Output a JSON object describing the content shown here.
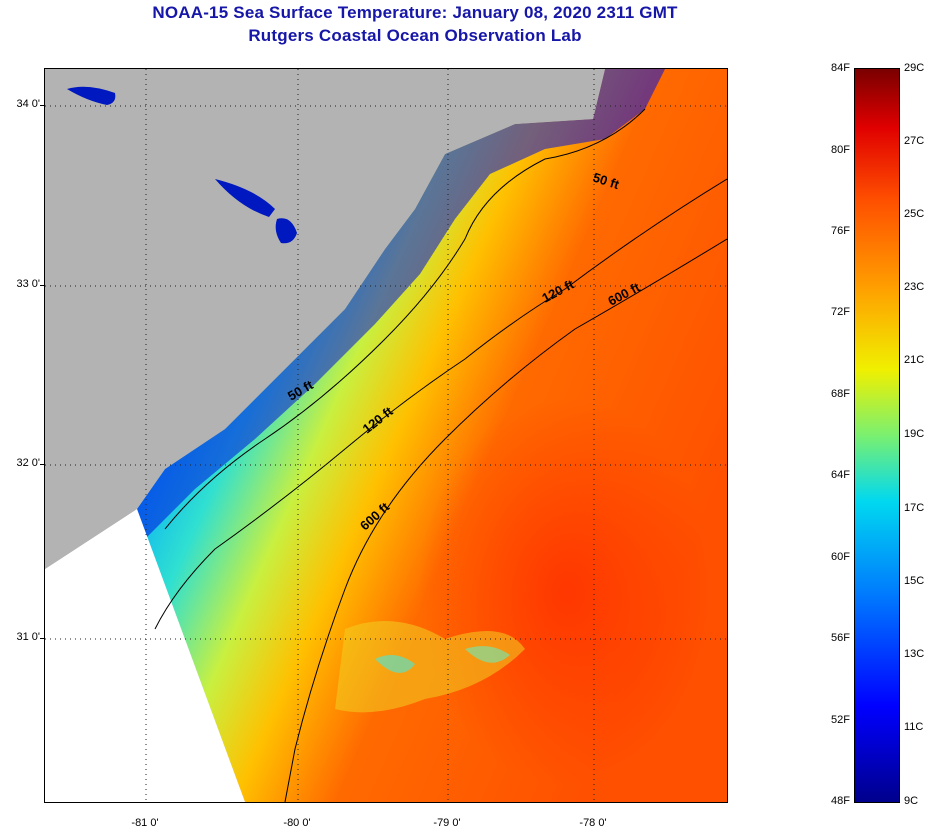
{
  "title": {
    "line1": "NOAA-15 Sea Surface Temperature:  January 08, 2020 2311 GMT",
    "line2": "Rutgers Coastal Ocean Observation Lab"
  },
  "map": {
    "lat_labels": [
      "34 0'",
      "33 0'",
      "32 0'",
      "31 0'"
    ],
    "lon_labels": [
      "-81 0'",
      "-80 0'",
      "-79 0'",
      "-78 0'"
    ],
    "contours": [
      "50 ft",
      "50 ft",
      "120 ft",
      "120 ft",
      "600 ft",
      "600 ft"
    ],
    "colors": {
      "land": "#b3b3b3",
      "no_data": "#ffffff"
    }
  },
  "colorbar": {
    "fahrenheit": [
      "84F",
      "80F",
      "76F",
      "72F",
      "68F",
      "64F",
      "60F",
      "56F",
      "52F",
      "48F"
    ],
    "celsius": [
      "29C",
      "27C",
      "25C",
      "23C",
      "21C",
      "19C",
      "17C",
      "15C",
      "13C",
      "11C",
      "9C"
    ]
  }
}
